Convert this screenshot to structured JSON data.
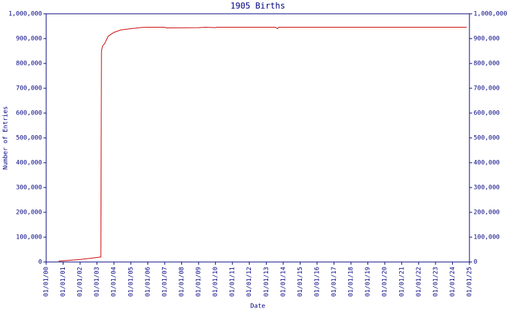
{
  "chart_data": {
    "type": "line",
    "title": "1905 Births",
    "x_label": "Date",
    "y_label": "Number of Entries",
    "x": [
      "2000-09-25",
      "2001-01-01",
      "2002-01-01",
      "2003-01-01",
      "2003-03-25",
      "2003-04-01",
      "2003-04-08",
      "2003-05-01",
      "2003-06-15",
      "2003-09-01",
      "2004-01-01",
      "2004-06-01",
      "2005-01-01",
      "2005-09-01",
      "2006-01-01",
      "2007-01-01",
      "2007-02-01",
      "2009-01-01",
      "2009-06-01",
      "2010-01-01",
      "2010-02-01",
      "2013-07-15",
      "2013-09-01",
      "2013-10-01",
      "2024-11-01"
    ],
    "series": [
      {
        "name": "1905 Births",
        "color": "#cc0000",
        "values": [
          3000,
          5000,
          10000,
          18000,
          20000,
          440000,
          850000,
          870000,
          880000,
          910000,
          925000,
          935000,
          940000,
          945000,
          946000,
          946000,
          943000,
          944000,
          946000,
          944000,
          946000,
          946000,
          940000,
          946000,
          946000
        ]
      }
    ],
    "xlim": [
      "2000-01-01",
      "2025-01-01"
    ],
    "xticks": [
      {
        "value": "2000-01-01",
        "label": "01/01/00"
      },
      {
        "value": "2001-01-01",
        "label": "01/01/01"
      },
      {
        "value": "2002-01-01",
        "label": "01/01/02"
      },
      {
        "value": "2003-01-01",
        "label": "01/01/03"
      },
      {
        "value": "2004-01-01",
        "label": "01/01/04"
      },
      {
        "value": "2005-01-01",
        "label": "01/01/05"
      },
      {
        "value": "2006-01-01",
        "label": "01/01/06"
      },
      {
        "value": "2007-01-01",
        "label": "01/01/07"
      },
      {
        "value": "2008-01-01",
        "label": "01/01/08"
      },
      {
        "value": "2009-01-01",
        "label": "01/01/09"
      },
      {
        "value": "2010-01-01",
        "label": "01/01/10"
      },
      {
        "value": "2011-01-01",
        "label": "01/01/11"
      },
      {
        "value": "2012-01-01",
        "label": "01/01/12"
      },
      {
        "value": "2013-01-01",
        "label": "01/01/13"
      },
      {
        "value": "2014-01-01",
        "label": "01/01/14"
      },
      {
        "value": "2015-01-01",
        "label": "01/01/15"
      },
      {
        "value": "2016-01-01",
        "label": "01/01/16"
      },
      {
        "value": "2017-01-01",
        "label": "01/01/17"
      },
      {
        "value": "2018-01-01",
        "label": "01/01/18"
      },
      {
        "value": "2019-01-01",
        "label": "01/01/19"
      },
      {
        "value": "2020-01-01",
        "label": "01/01/20"
      },
      {
        "value": "2021-01-01",
        "label": "01/01/21"
      },
      {
        "value": "2022-01-01",
        "label": "01/01/22"
      },
      {
        "value": "2023-01-01",
        "label": "01/01/23"
      },
      {
        "value": "2024-01-01",
        "label": "01/01/24"
      },
      {
        "value": "2025-01-01",
        "label": "01/01/25"
      }
    ],
    "ylim": [
      0,
      1000000
    ],
    "yticks": [
      0,
      {
        "value": 100000,
        "label": "100,000"
      },
      {
        "value": 200000,
        "label": "200,000"
      },
      {
        "value": 300000,
        "label": "300,000"
      },
      {
        "value": 400000,
        "label": "400,000"
      },
      {
        "value": 500000,
        "label": "500,000"
      },
      {
        "value": 600000,
        "label": "600,000"
      },
      {
        "value": 700000,
        "label": "700,000"
      },
      {
        "value": 800000,
        "label": "800,000"
      },
      {
        "value": 900000,
        "label": "900,000"
      },
      {
        "value": 1000000,
        "label": "1,000,000"
      }
    ],
    "axis_color": "#000080",
    "grid": false
  }
}
